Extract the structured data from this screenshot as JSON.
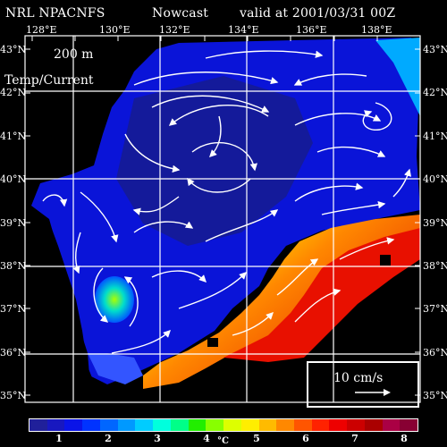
{
  "header": {
    "model": "NRL NPACNFS",
    "run_type": "Nowcast",
    "valid": "valid at 2001/03/31 00Z"
  },
  "map": {
    "depth": "200 m",
    "fields": "Temp/Current",
    "lon_labels": [
      "128°E",
      "130°E",
      "132°E",
      "134°E",
      "136°E",
      "138°E"
    ],
    "lat_labels": [
      "43°N",
      "42°N",
      "41°N",
      "40°N",
      "39°N",
      "38°N",
      "37°N",
      "36°N",
      "35°N"
    ],
    "land_color": "#000000",
    "grid_color": "#ffffff"
  },
  "scale_vector": {
    "label": "10 cm/s"
  },
  "colorbar": {
    "ticks": [
      "1",
      "2",
      "3",
      "4",
      "5",
      "6",
      "7",
      "8"
    ],
    "unit": "°C",
    "colors": [
      "#20209a",
      "#1818c0",
      "#0a14e8",
      "#0033ff",
      "#0066ff",
      "#0099ff",
      "#00ccff",
      "#00ffdd",
      "#00ff88",
      "#22ee00",
      "#88ff00",
      "#ddff00",
      "#ffee00",
      "#ffbb00",
      "#ff8800",
      "#ff5500",
      "#ff2200",
      "#ee0000",
      "#cc0000",
      "#aa0000",
      "#aa0044",
      "#880033"
    ]
  }
}
